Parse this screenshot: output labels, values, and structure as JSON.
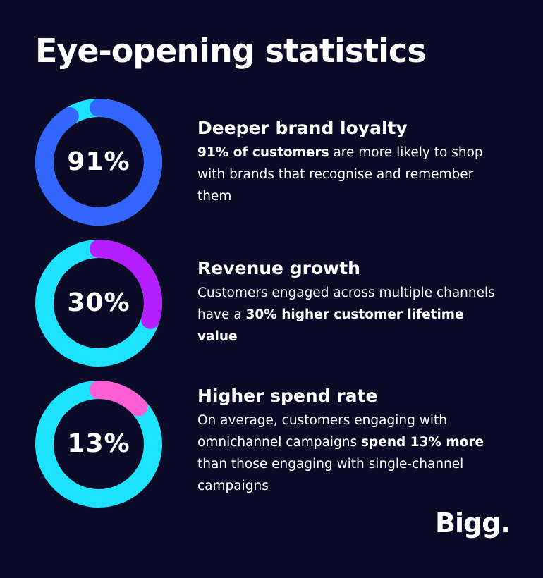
{
  "page": {
    "title": "Eye-opening statistics",
    "brand": "Bigg."
  },
  "stats": [
    {
      "value_label": "91%",
      "heading": "Deeper brand loyalty",
      "body_parts": [
        {
          "text": "91% of customers",
          "bold": true
        },
        {
          "text": " are more likely to shop with brands that recognise and remember them",
          "bold": false
        }
      ]
    },
    {
      "value_label": "30%",
      "heading": "Revenue growth",
      "body_parts": [
        {
          "text": "Customers engaged across multiple channels have a ",
          "bold": false
        },
        {
          "text": "30% higher customer lifetime value",
          "bold": true
        }
      ]
    },
    {
      "value_label": "13%",
      "heading": "Higher spend rate",
      "body_parts": [
        {
          "text": "On average, customers engaging with omnichannel campaigns ",
          "bold": false
        },
        {
          "text": "spend 13% more",
          "bold": true
        },
        {
          "text": " than those engaging with single-channel campaigns",
          "bold": false
        }
      ]
    }
  ],
  "chart_data": [
    {
      "type": "pie",
      "variant": "donut",
      "value_percent": 91,
      "highlight_color": "#3366ff",
      "track_color": "#1ee3ff"
    },
    {
      "type": "pie",
      "variant": "donut",
      "value_percent": 30,
      "highlight_color": "#b51fff",
      "track_color": "#1ee3ff"
    },
    {
      "type": "pie",
      "variant": "donut",
      "value_percent": 13,
      "highlight_color": "#ff5fd2",
      "track_color": "#1ee3ff"
    }
  ],
  "colors": {
    "background": "#0b0a27",
    "text": "#ffffff"
  }
}
